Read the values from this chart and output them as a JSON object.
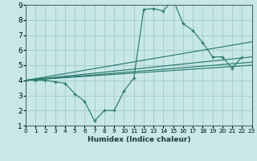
{
  "xlabel": "Humidex (Indice chaleur)",
  "background_color": "#c8e8e8",
  "grid_color": "#aacccc",
  "line_color": "#2a7a70",
  "xlim": [
    0,
    23
  ],
  "ylim": [
    1,
    9
  ],
  "xticks": [
    0,
    1,
    2,
    3,
    4,
    5,
    6,
    7,
    8,
    9,
    10,
    11,
    12,
    13,
    14,
    15,
    16,
    17,
    18,
    19,
    20,
    21,
    22,
    23
  ],
  "yticks": [
    1,
    2,
    3,
    4,
    5,
    6,
    7,
    8,
    9
  ],
  "main_line": {
    "x": [
      0,
      1,
      2,
      3,
      4,
      5,
      6,
      7,
      8,
      9,
      10,
      11,
      12,
      13,
      14,
      15,
      16,
      17,
      18,
      19,
      20,
      21,
      22
    ],
    "y": [
      4.0,
      4.0,
      4.0,
      3.9,
      3.8,
      3.1,
      2.6,
      1.3,
      2.0,
      2.0,
      3.3,
      4.15,
      8.7,
      8.75,
      8.6,
      9.35,
      7.75,
      7.3,
      6.5,
      5.55,
      5.55,
      4.8,
      5.55
    ]
  },
  "trend_lines": [
    {
      "x": [
        0,
        23
      ],
      "y": [
        4.0,
        6.55
      ]
    },
    {
      "x": [
        0,
        23
      ],
      "y": [
        4.0,
        5.55
      ]
    },
    {
      "x": [
        0,
        23
      ],
      "y": [
        4.0,
        5.2
      ]
    },
    {
      "x": [
        0,
        23
      ],
      "y": [
        4.0,
        5.0
      ]
    }
  ]
}
